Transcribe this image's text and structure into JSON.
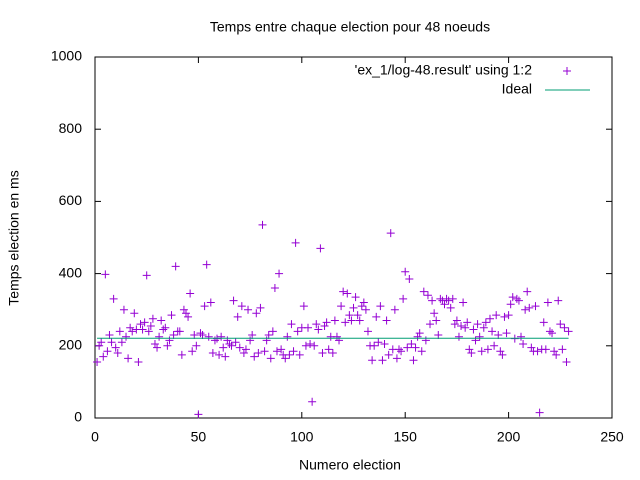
{
  "chart_data": {
    "type": "scatter",
    "title": "Temps entre chaque election pour 48 noeuds",
    "xlabel": "Numero election",
    "ylabel": "Temps election en ms",
    "xlim": [
      0,
      250
    ],
    "xticks": [
      0,
      50,
      100,
      150,
      200,
      250
    ],
    "ylim": [
      0,
      1000
    ],
    "yticks": [
      0,
      200,
      400,
      600,
      800,
      1000
    ],
    "grid": false,
    "legend": "top-right",
    "series": [
      {
        "name": "'ex_1/log-48.result' using 1:2",
        "color": "#9400d3",
        "marker": "plus",
        "x": [
          1,
          2,
          3,
          4,
          5,
          6,
          7,
          8,
          9,
          10,
          11,
          12,
          13,
          14,
          15,
          16,
          17,
          18,
          19,
          20,
          21,
          22,
          23,
          24,
          25,
          26,
          27,
          28,
          29,
          30,
          31,
          32,
          33,
          34,
          35,
          36,
          37,
          38,
          39,
          40,
          41,
          42,
          43,
          44,
          45,
          46,
          47,
          48,
          49,
          50,
          51,
          52,
          53,
          54,
          55,
          56,
          57,
          58,
          59,
          60,
          61,
          62,
          63,
          64,
          65,
          66,
          67,
          68,
          69,
          70,
          71,
          72,
          73,
          74,
          75,
          76,
          77,
          78,
          79,
          80,
          81,
          82,
          83,
          84,
          85,
          86,
          87,
          88,
          89,
          90,
          91,
          92,
          93,
          94,
          95,
          96,
          97,
          98,
          99,
          100,
          101,
          102,
          103,
          104,
          105,
          106,
          107,
          108,
          109,
          110,
          111,
          112,
          113,
          114,
          115,
          116,
          117,
          118,
          119,
          120,
          121,
          122,
          123,
          124,
          125,
          126,
          127,
          128,
          129,
          130,
          131,
          132,
          133,
          134,
          135,
          136,
          137,
          138,
          139,
          140,
          141,
          142,
          143,
          144,
          145,
          146,
          147,
          148,
          149,
          150,
          151,
          152,
          153,
          154,
          155,
          156,
          157,
          158,
          159,
          160,
          161,
          162,
          163,
          164,
          165,
          166,
          167,
          168,
          169,
          170,
          171,
          172,
          173,
          174,
          175,
          176,
          177,
          178,
          179,
          180,
          181,
          182,
          183,
          184,
          185,
          186,
          187,
          188,
          189,
          190,
          191,
          192,
          193,
          194,
          195,
          196,
          197,
          198,
          199,
          200,
          201,
          202,
          203,
          204,
          205,
          206,
          207,
          208,
          209,
          210,
          211,
          212,
          213,
          214,
          215,
          216,
          217,
          218,
          219,
          220,
          221,
          222,
          223,
          224,
          225,
          226,
          227,
          228,
          229
        ],
        "values": [
          155,
          200,
          210,
          170,
          398,
          185,
          230,
          210,
          330,
          195,
          180,
          240,
          210,
          300,
          225,
          165,
          250,
          240,
          290,
          245,
          155,
          260,
          245,
          265,
          395,
          240,
          255,
          275,
          205,
          195,
          225,
          270,
          245,
          250,
          200,
          215,
          285,
          230,
          420,
          240,
          240,
          175,
          300,
          290,
          280,
          345,
          185,
          230,
          200,
          10,
          235,
          230,
          310,
          425,
          225,
          320,
          180,
          215,
          220,
          175,
          225,
          195,
          170,
          215,
          205,
          200,
          325,
          210,
          280,
          195,
          310,
          180,
          190,
          300,
          215,
          230,
          170,
          290,
          180,
          305,
          535,
          185,
          215,
          230,
          165,
          240,
          360,
          185,
          400,
          190,
          175,
          165,
          225,
          175,
          260,
          185,
          485,
          240,
          175,
          250,
          310,
          200,
          250,
          205,
          45,
          200,
          260,
          245,
          470,
          180,
          255,
          265,
          190,
          225,
          180,
          270,
          225,
          215,
          310,
          350,
          265,
          345,
          285,
          270,
          305,
          335,
          285,
          270,
          310,
          320,
          300,
          240,
          200,
          160,
          200,
          280,
          210,
          310,
          160,
          205,
          270,
          175,
          512,
          190,
          300,
          165,
          190,
          185,
          330,
          405,
          195,
          385,
          205,
          160,
          195,
          225,
          235,
          185,
          350,
          215,
          340,
          260,
          325,
          290,
          270,
          230,
          330,
          325,
          315,
          330,
          325,
          305,
          330,
          260,
          270,
          225,
          255,
          320,
          250,
          265,
          190,
          180,
          245,
          215,
          260,
          225,
          185,
          250,
          265,
          190,
          275,
          240,
          200,
          285,
          230,
          185,
          175,
          280,
          235,
          285,
          315,
          335,
          220,
          330,
          325,
          225,
          205,
          300,
          350,
          305,
          195,
          185,
          310,
          185,
          15,
          190,
          265,
          190,
          320,
          240,
          235,
          185,
          175,
          325,
          260,
          190,
          250,
          155,
          240
        ]
      },
      {
        "name": "Ideal",
        "color": "#009e73",
        "marker": "line",
        "x": [
          1,
          229
        ],
        "values": [
          221,
          221
        ]
      }
    ]
  }
}
